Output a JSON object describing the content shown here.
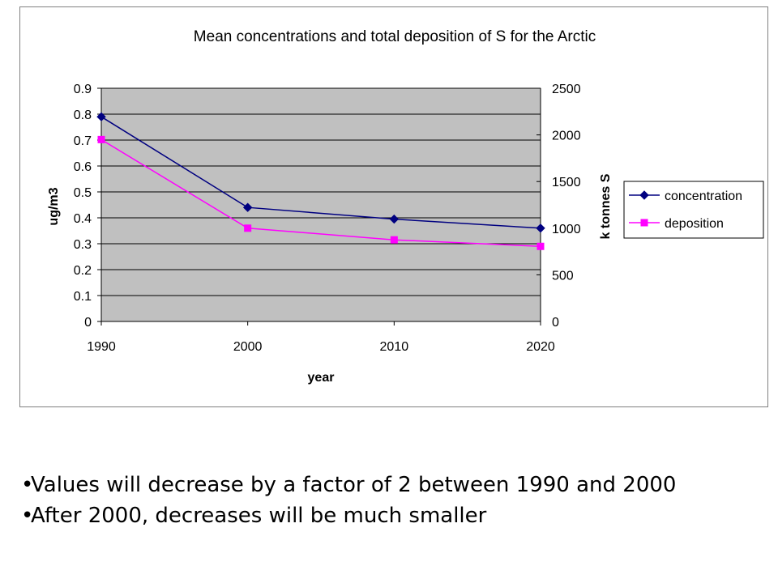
{
  "chart_data": {
    "type": "line",
    "title": "Mean concentrations and total deposition of S for the Arctic",
    "xlabel": "year",
    "ylabel_left": "ug/m3",
    "ylabel_right": "k tonnes S",
    "categories": [
      "1990",
      "2000",
      "2010",
      "2020"
    ],
    "ylim_left": [
      0,
      0.9
    ],
    "yticks_left": [
      "0",
      "0.1",
      "0.2",
      "0.3",
      "0.4",
      "0.5",
      "0.6",
      "0.7",
      "0.8",
      "0.9"
    ],
    "ylim_right": [
      0,
      2500
    ],
    "yticks_right": [
      "0",
      "500",
      "1000",
      "1500",
      "2000",
      "2500"
    ],
    "grid": true,
    "legend": "right",
    "series": [
      {
        "name": "concentration",
        "axis": "left",
        "color": "#000080",
        "marker": "diamond",
        "values": [
          0.79,
          0.44,
          0.395,
          0.36
        ]
      },
      {
        "name": "deposition",
        "axis": "right",
        "color": "#ff00ff",
        "marker": "square",
        "values": [
          1950,
          1000,
          875,
          805
        ]
      }
    ],
    "plot_background": "#c0c0c0"
  },
  "bullets": [
    "Values will decrease by a factor of 2 between 1990 and 2000",
    "After 2000, decreases will be much smaller"
  ],
  "bullet_symbol": "•"
}
